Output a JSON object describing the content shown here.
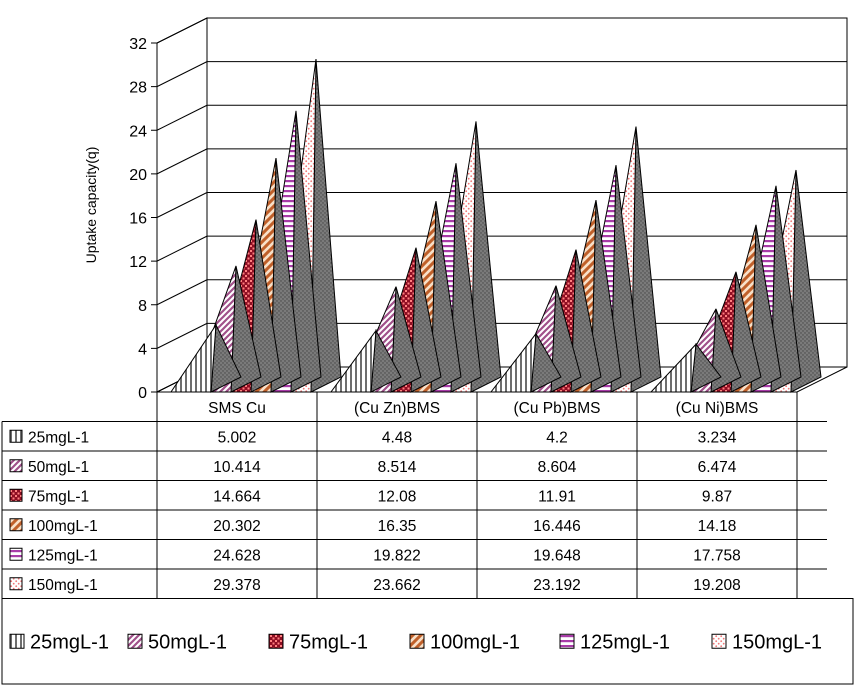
{
  "chart_data": {
    "type": "bar",
    "style": "3d-pyramid",
    "ylabel": "Uptake capacity(q)",
    "ylim": [
      0,
      32
    ],
    "yticks": [
      0,
      4,
      8,
      12,
      16,
      20,
      24,
      28,
      32
    ],
    "grid": true,
    "legend_position": "bottom",
    "data_table": true,
    "categories": [
      "SMS Cu",
      "(Cu Zn)BMS",
      "(Cu Pb)BMS",
      "(Cu Ni)BMS"
    ],
    "series": [
      {
        "name": "25mgL-1",
        "values": [
          5.002,
          4.48,
          4.2,
          3.234
        ],
        "display": [
          "5.002",
          "4.48",
          "4.2",
          "3.234"
        ],
        "pattern": "vertical-lines",
        "color": "#9a9a9a"
      },
      {
        "name": "50mgL-1",
        "values": [
          10.414,
          8.514,
          8.604,
          6.474
        ],
        "display": [
          "10.414",
          "8.514",
          "8.604",
          "6.474"
        ],
        "pattern": "diagonal-lines",
        "color": "#a0508a"
      },
      {
        "name": "75mgL-1",
        "values": [
          14.664,
          12.08,
          11.91,
          9.87
        ],
        "display": [
          "14.664",
          "12.08",
          "11.91",
          "9.87"
        ],
        "pattern": "checker",
        "color": "#a01e32"
      },
      {
        "name": "100mgL-1",
        "values": [
          20.302,
          16.35,
          16.446,
          14.18
        ],
        "display": [
          "20.302",
          "16.35",
          "16.446",
          "14.18"
        ],
        "pattern": "diagonal-wide",
        "color": "#c0602a"
      },
      {
        "name": "125mgL-1",
        "values": [
          24.628,
          19.822,
          19.648,
          17.758
        ],
        "display": [
          "24.628",
          "19.822",
          "19.648",
          "17.758"
        ],
        "pattern": "horizontal-lines",
        "color": "#b040b0"
      },
      {
        "name": "150mgL-1",
        "values": [
          29.378,
          23.662,
          23.192,
          19.208
        ],
        "display": [
          "29.378",
          "23.662",
          "23.192",
          "19.208"
        ],
        "pattern": "dots",
        "color": "#f0b0b0"
      }
    ],
    "back_wall_color": "#808080"
  }
}
